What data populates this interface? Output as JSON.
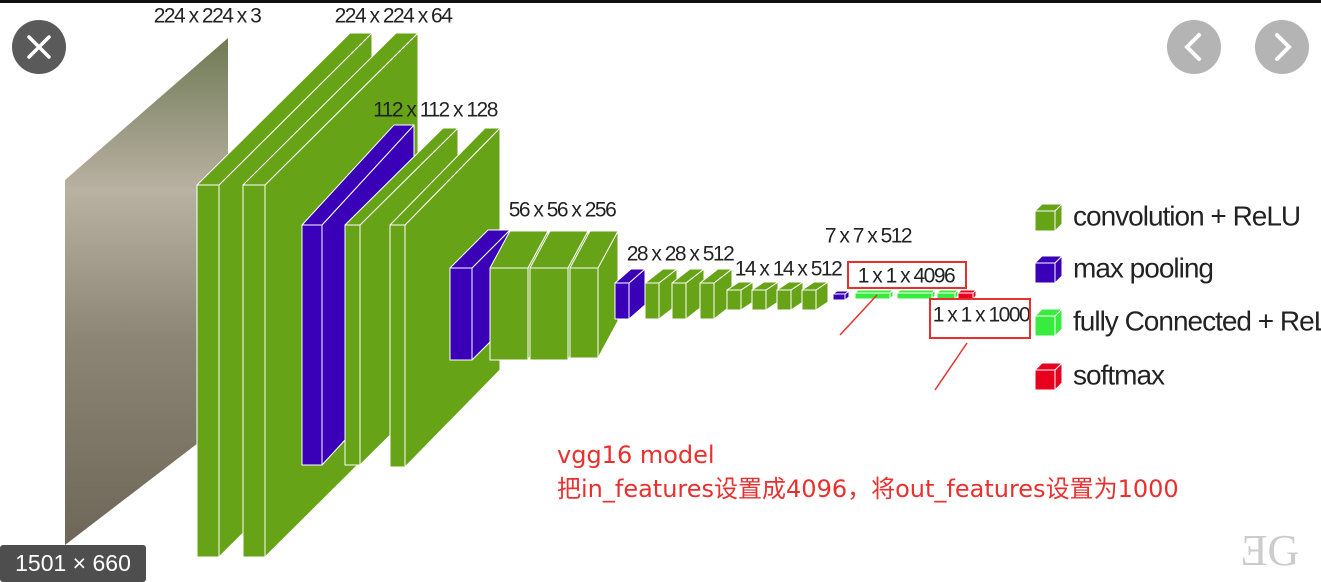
{
  "viewer": {
    "image_size": "1501 × 660"
  },
  "diagram": {
    "layer_labels": [
      "224 x 224 x 3",
      "224 x 224 x 64",
      "112 x 112 x 128",
      "56 x 56 x 256",
      "28 x 28 x 512",
      "14 x 14 x 512",
      "7 x 7 x 512",
      "1 x 1 x 4096",
      "1 x 1 x 1000"
    ],
    "legend": [
      "convolution + ReLU",
      "max pooling",
      "fully Connected + ReLU",
      "softmax"
    ]
  },
  "annotation": {
    "lines": [
      "vgg16 model",
      "把in_features设置成4096，将out_features设置为1000"
    ]
  }
}
